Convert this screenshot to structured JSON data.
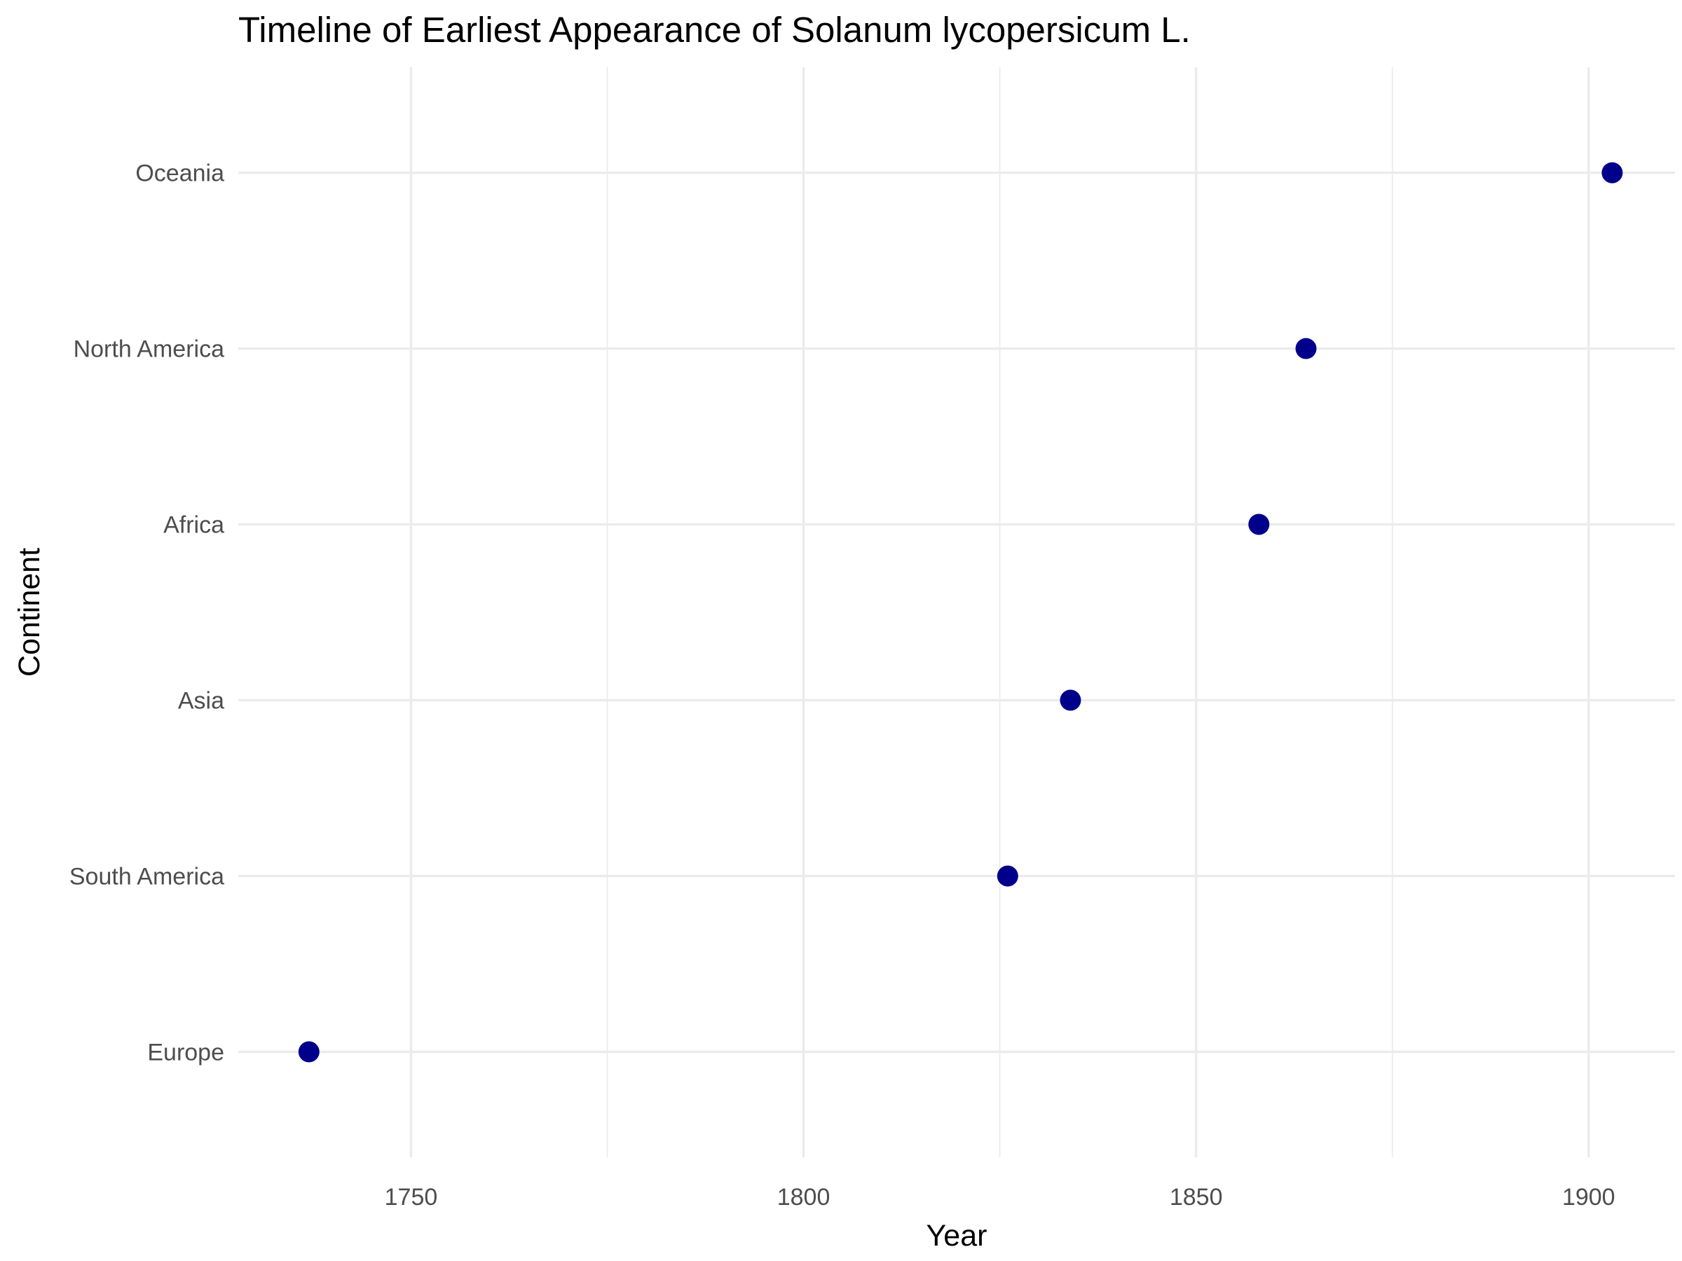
{
  "chart_data": {
    "type": "scatter",
    "title": "Timeline of Earliest Appearance of Solanum lycopersicum L.",
    "xlabel": "Year",
    "ylabel": "Continent",
    "categories": [
      "Europe",
      "South America",
      "Asia",
      "Africa",
      "North America",
      "Oceania"
    ],
    "points": [
      {
        "category": "Europe",
        "x": 1737
      },
      {
        "category": "South America",
        "x": 1826
      },
      {
        "category": "Asia",
        "x": 1834
      },
      {
        "category": "Africa",
        "x": 1858
      },
      {
        "category": "North America",
        "x": 1864
      },
      {
        "category": "Oceania",
        "x": 1903
      }
    ],
    "xlim": [
      1728,
      1911
    ],
    "x_ticks": [
      1750,
      1800,
      1850,
      1900
    ],
    "x_minor_ticks": [
      1775,
      1825,
      1875
    ],
    "grid": true,
    "legend": "none",
    "point_color": "#00008b"
  }
}
